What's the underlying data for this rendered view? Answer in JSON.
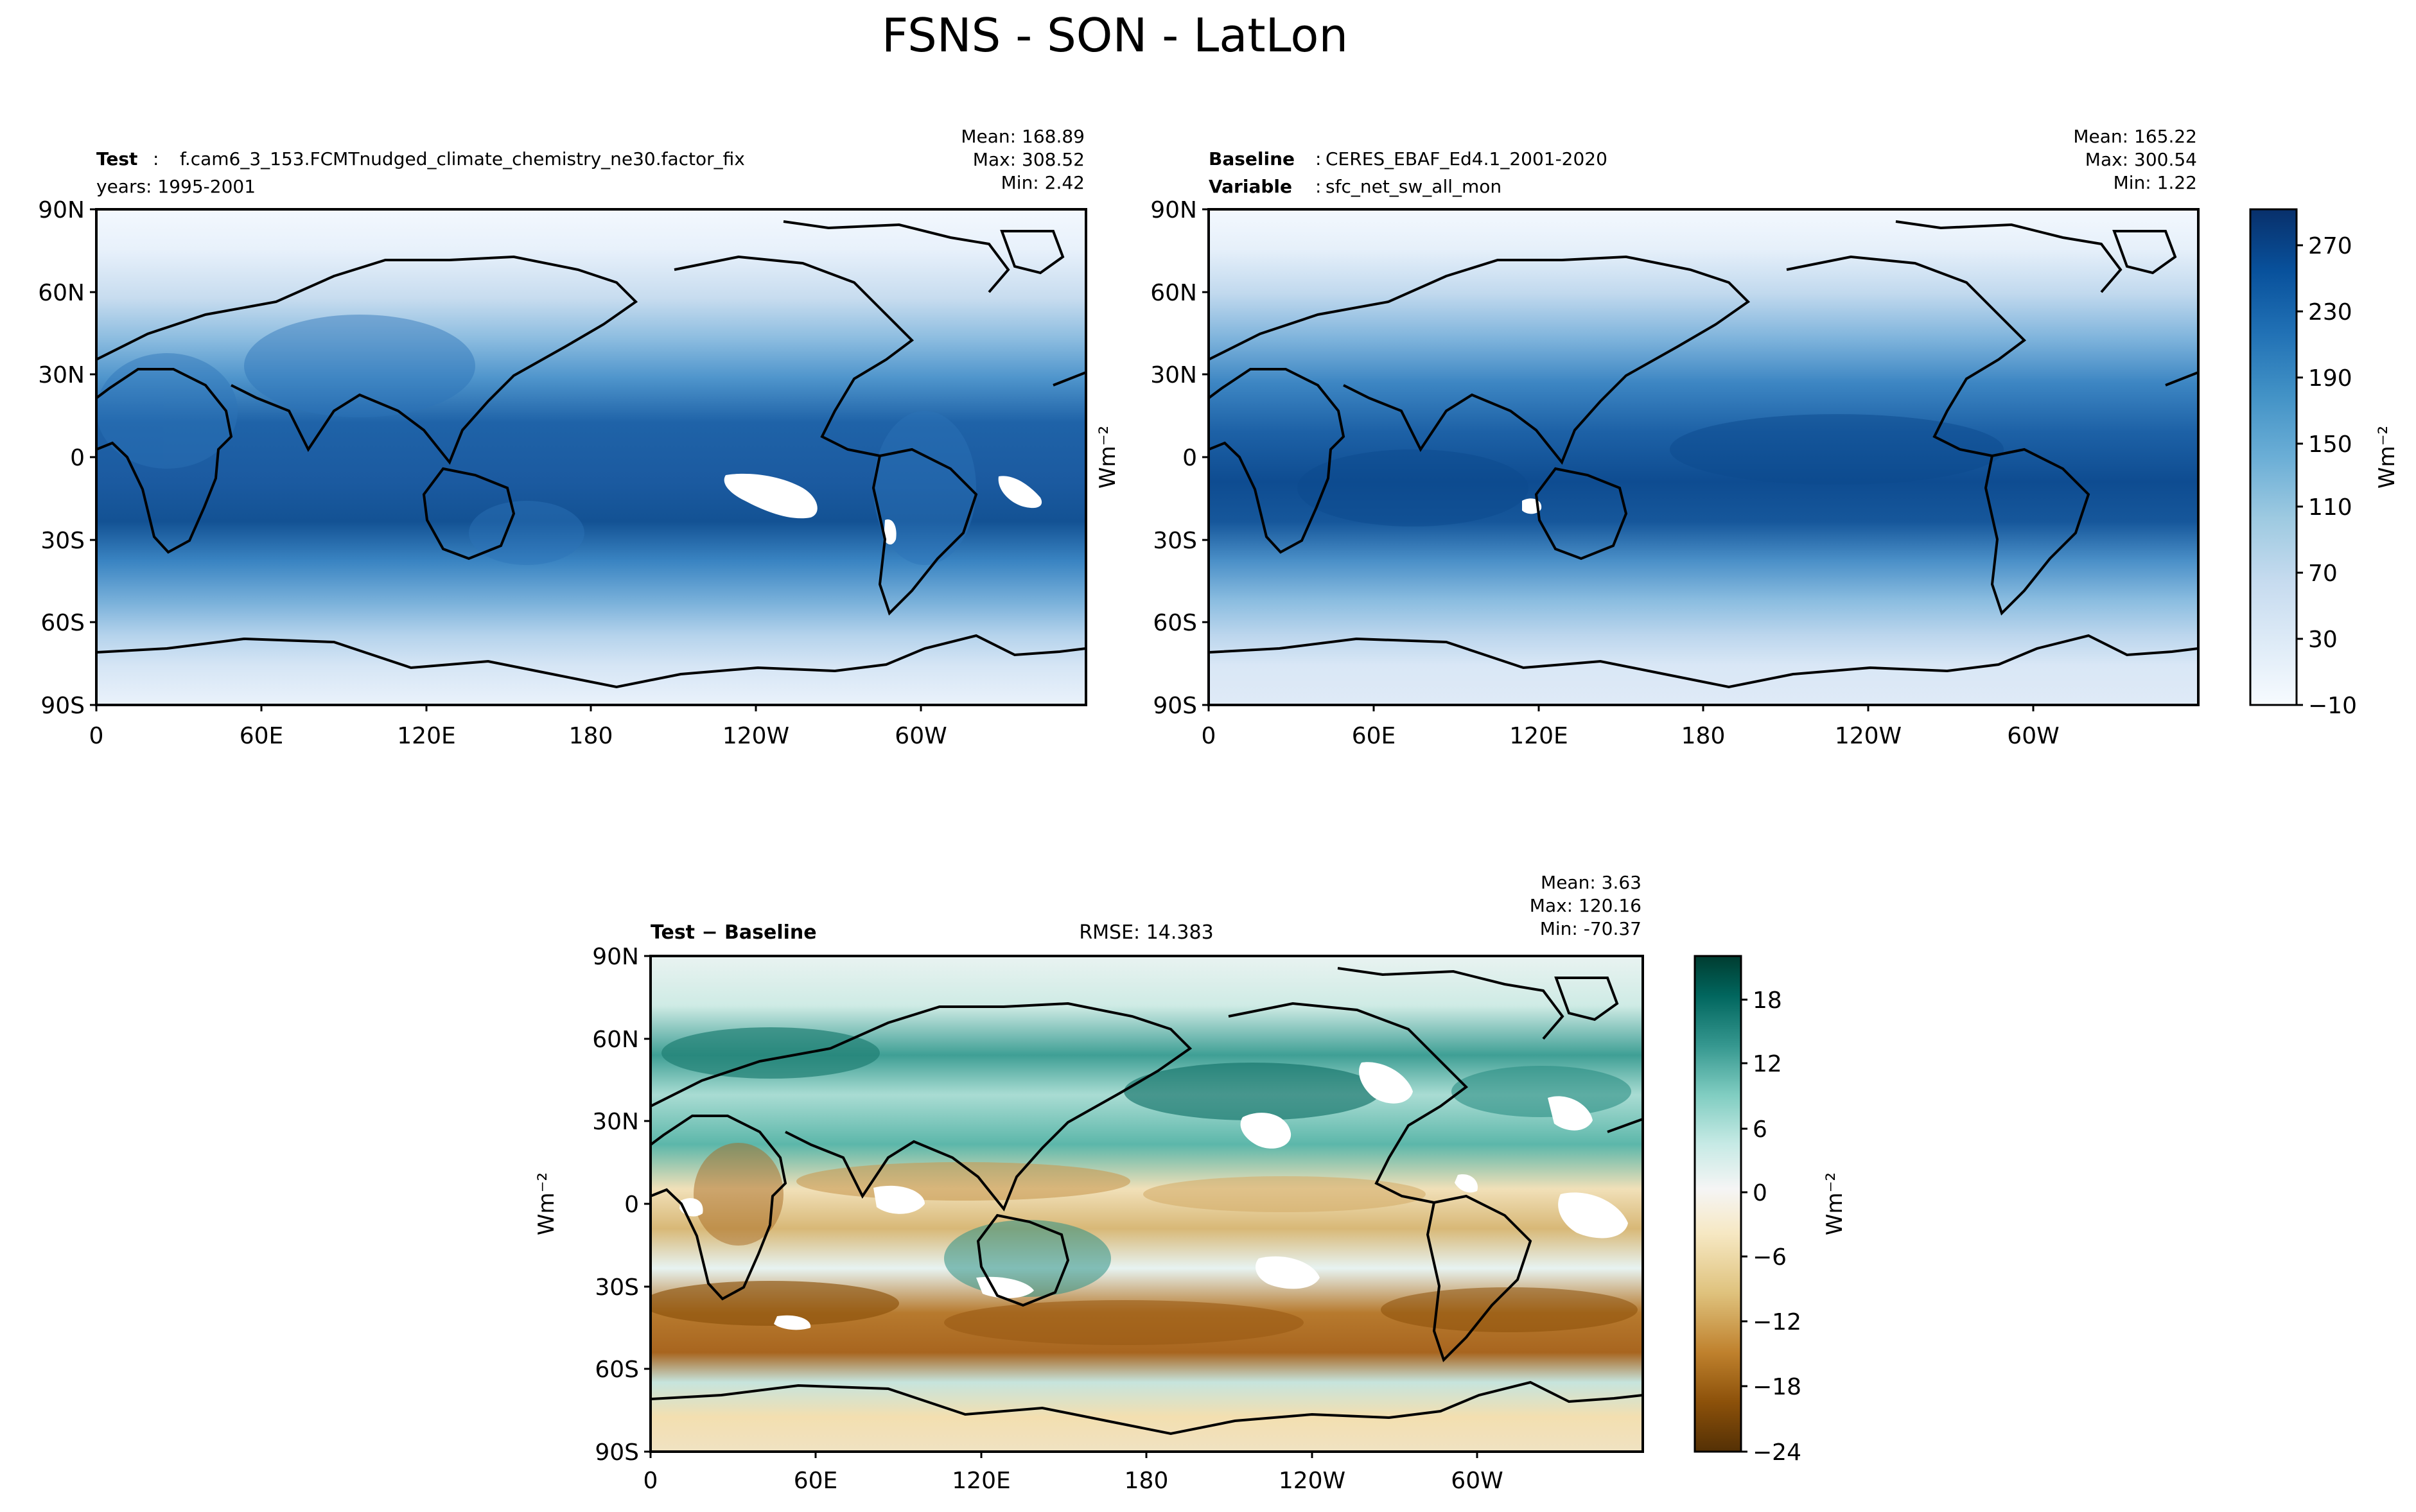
{
  "figure": {
    "title": "FSNS - SON - LatLon"
  },
  "chart_data": [
    {
      "type": "heatmap",
      "panel": "test",
      "label_bold": "Test",
      "label_text": "f.cam6_3_153.FCMTnudged_climate_chemistry_ne30.factor_fix",
      "sub_text": "years: 1995-2001",
      "stats": [
        "Mean: 168.89",
        "Max: 308.52",
        "Min:  2.42"
      ],
      "x_ticks": [
        "0",
        "60E",
        "120E",
        "180",
        "120W",
        "60W"
      ],
      "y_ticks": [
        "90N",
        "60N",
        "30N",
        "0",
        "30S",
        "60S",
        "90S"
      ],
      "ylim": [
        -90,
        90
      ],
      "colormap": "Blues"
    },
    {
      "type": "heatmap",
      "panel": "baseline",
      "label_bold": "Baseline",
      "label_text": "CERES_EBAF_Ed4.1_2001-2020",
      "label2_bold": "Variable",
      "label2_text": "sfc_net_sw_all_mon",
      "stats": [
        "Mean: 165.22",
        "Max: 300.54",
        "Min:  1.22"
      ],
      "x_ticks": [
        "0",
        "60E",
        "120E",
        "180",
        "120W",
        "60W"
      ],
      "y_ticks": [
        "90N",
        "60N",
        "30N",
        "0",
        "30S",
        "60S",
        "90S"
      ],
      "ylabel": "Wm⁻²",
      "colormap": "Blues",
      "colorbar": {
        "ticks": [
          "270",
          "230",
          "190",
          "150",
          "110",
          "70",
          "30",
          "−10"
        ],
        "range": [
          -10,
          290
        ],
        "label": "Wm⁻²"
      }
    },
    {
      "type": "heatmap",
      "panel": "difference",
      "label_bold": "Test − Baseline",
      "rmse": "RMSE: 14.383",
      "stats": [
        "Mean:  3.63",
        "Max: 120.16",
        "Min: -70.37"
      ],
      "x_ticks": [
        "0",
        "60E",
        "120E",
        "180",
        "120W",
        "60W"
      ],
      "y_ticks": [
        "90N",
        "60N",
        "30N",
        "0",
        "30S",
        "60S",
        "90S"
      ],
      "ylabel": "Wm⁻²",
      "colormap": "BrBG",
      "colorbar": {
        "ticks": [
          "18",
          "12",
          "6",
          "0",
          "−6",
          "−12",
          "−18",
          "−24"
        ],
        "range": [
          -24,
          21
        ],
        "label": "Wm⁻²"
      }
    }
  ],
  "colors": {
    "blues": [
      "#f7fbff",
      "#deebf7",
      "#c6dbef",
      "#9ecae1",
      "#6baed6",
      "#4292c6",
      "#2171b5",
      "#08519c",
      "#08306b"
    ],
    "brbg": [
      "#543005",
      "#8c510a",
      "#bf812d",
      "#dfc27d",
      "#f6e8c3",
      "#f5f5f5",
      "#c7eae5",
      "#80cdc1",
      "#35978f",
      "#01665e",
      "#003c30"
    ]
  }
}
